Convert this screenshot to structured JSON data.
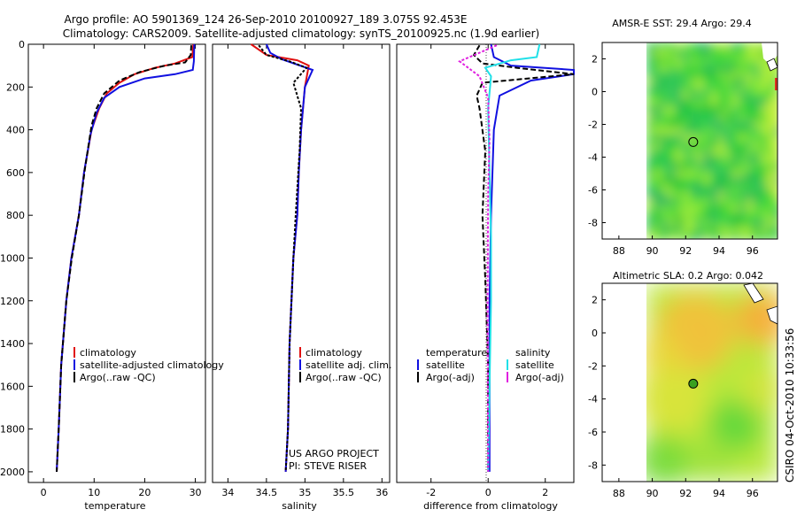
{
  "header": {
    "title_line1": "Argo profile: AO 5901369_124 26-Sep-2010 20100927_189 3.075S 92.453E",
    "title_line2": "Climatology: CARS2009. Satellite-adjusted climatology: synTS_20100925.nc (1.9d earlier)"
  },
  "credit": "CSIRO 04-Oct-2010 10:33:56",
  "colors": {
    "climatology": "#e01010",
    "satellite": "#1010e0",
    "argo": "#000000",
    "sat_salinity": "#20e0e8",
    "argo_salinity": "#e020e0"
  },
  "chart_data": [
    {
      "type": "line",
      "id": "temperature",
      "xlabel": "temperature",
      "ylabel": "",
      "xlim": [
        -3,
        32
      ],
      "ylim": [
        2050,
        0
      ],
      "xticks": [
        "0",
        "10",
        "20",
        "30"
      ],
      "xtick_values": [
        0,
        10,
        20,
        30
      ],
      "yticks": [
        "0",
        "200",
        "400",
        "600",
        "800",
        "1000",
        "1200",
        "1400",
        "1600",
        "1800",
        "2000"
      ],
      "ytick_values": [
        0,
        200,
        400,
        600,
        800,
        1000,
        1200,
        1400,
        1600,
        1800,
        2000
      ],
      "legend": [
        "climatology",
        "satellite-adjusted climatology",
        "Argo(..raw -QC)"
      ],
      "series": [
        {
          "name": "climatology",
          "x": [
            29.6,
            29.4,
            26,
            22,
            18,
            15,
            12.5,
            11,
            9.5,
            8,
            7,
            5.5,
            4.5,
            3.5,
            3,
            2.6
          ],
          "y": [
            0,
            60,
            90,
            110,
            140,
            180,
            230,
            300,
            400,
            600,
            800,
            1000,
            1200,
            1500,
            1800,
            2000
          ]
        },
        {
          "name": "satellite-adjusted climatology",
          "x": [
            29.8,
            29.7,
            29.5,
            26,
            20,
            15,
            12,
            10.5,
            9.3,
            8,
            7,
            5.5,
            4.5,
            3.5,
            3,
            2.6
          ],
          "y": [
            0,
            80,
            120,
            140,
            160,
            200,
            250,
            320,
            420,
            600,
            800,
            1000,
            1200,
            1500,
            1800,
            2000
          ]
        },
        {
          "name": "Argo(..raw -QC)",
          "x": [
            29.2,
            29.1,
            28,
            24,
            19,
            15,
            12,
            10.5,
            9.5,
            8.2,
            7,
            5.6,
            4.5,
            3.5,
            3,
            2.6
          ],
          "y": [
            5,
            50,
            85,
            100,
            130,
            170,
            230,
            300,
            380,
            580,
            800,
            1000,
            1200,
            1500,
            1800,
            2000
          ]
        }
      ]
    },
    {
      "type": "line",
      "id": "salinity",
      "xlabel": "salinity",
      "ylabel": "",
      "xlim": [
        33.8,
        36.1
      ],
      "ylim": [
        2050,
        0
      ],
      "xticks": [
        "34",
        "34.5",
        "35",
        "35.5",
        "36"
      ],
      "xtick_values": [
        34,
        34.5,
        35,
        35.5,
        36
      ],
      "legend": [
        "climatology",
        "satellite adj. clim.",
        "Argo(..raw -QC)"
      ],
      "annotations": [
        "US ARGO PROJECT",
        "PI: STEVE RISER"
      ],
      "series": [
        {
          "name": "climatology",
          "x": [
            34.3,
            34.5,
            34.9,
            35.05,
            35.0,
            34.95,
            34.92,
            34.9,
            34.85,
            34.8,
            34.78,
            34.75
          ],
          "y": [
            0,
            50,
            75,
            100,
            200,
            400,
            600,
            800,
            1000,
            1400,
            1800,
            2000
          ]
        },
        {
          "name": "satellite adj. clim.",
          "x": [
            34.5,
            34.55,
            34.7,
            35.1,
            35.0,
            34.95,
            34.92,
            34.9,
            34.85,
            34.8,
            34.78,
            34.75
          ],
          "y": [
            0,
            40,
            70,
            120,
            200,
            400,
            600,
            800,
            1000,
            1400,
            1800,
            2000
          ]
        },
        {
          "name": "Argo(..raw -QC)",
          "x": [
            34.4,
            34.5,
            34.8,
            35.02,
            34.85,
            34.95,
            34.93,
            34.88,
            34.85,
            34.8,
            34.78,
            34.75
          ],
          "y": [
            5,
            50,
            80,
            110,
            180,
            300,
            500,
            800,
            1000,
            1400,
            1800,
            2000
          ]
        }
      ]
    },
    {
      "type": "line",
      "id": "difference",
      "xlabel": "difference from climatology",
      "ylabel": "",
      "xlim": [
        -3.2,
        3
      ],
      "ylim": [
        2050,
        0
      ],
      "xticks": [
        "-2",
        "0",
        "2"
      ],
      "xtick_values": [
        -2,
        0,
        2
      ],
      "legend_left_header": "temperature",
      "legend_right_header": "salinity",
      "legend": [
        "satellite",
        "Argo(-adj)",
        "satellite",
        "Argo(-adj)"
      ],
      "series": [
        {
          "name": "satellite (temperature)",
          "x": [
            0.1,
            0.2,
            0.8,
            3,
            3,
            1.5,
            0.4,
            0.2,
            0.1,
            0.05,
            0.05,
            0.05
          ],
          "y": [
            0,
            60,
            100,
            120,
            140,
            170,
            240,
            400,
            800,
            1200,
            1600,
            2000
          ]
        },
        {
          "name": "Argo(-adj) (temperature)",
          "x": [
            -0.3,
            -0.5,
            -0.2,
            1,
            3,
            -0.2,
            -0.4,
            -0.3,
            -0.1,
            -0.2,
            -0.1,
            0,
            0
          ],
          "y": [
            5,
            50,
            90,
            110,
            140,
            180,
            240,
            300,
            500,
            800,
            1100,
            1500,
            2000
          ]
        },
        {
          "name": "satellite (salinity)",
          "x": [
            1.8,
            1.7,
            0.8,
            -0.1,
            0.1,
            0,
            0.05,
            0.1,
            0.1,
            0.05,
            0
          ],
          "y": [
            0,
            60,
            75,
            110,
            150,
            300,
            600,
            900,
            1200,
            1600,
            2000
          ]
        },
        {
          "name": "Argo(-adj) (salinity)",
          "x": [
            0.3,
            -1,
            -0.6,
            -0.3,
            0,
            0.05,
            0,
            -0.02,
            0
          ],
          "y": [
            5,
            80,
            120,
            150,
            250,
            450,
            700,
            1200,
            2000
          ]
        }
      ]
    },
    {
      "type": "heatmap",
      "id": "sst_map",
      "title": "AMSR-E SST: 29.4 Argo: 29.4",
      "xticks": [
        "88",
        "90",
        "92",
        "94",
        "96"
      ],
      "xtick_values": [
        88,
        90,
        92,
        94,
        96
      ],
      "yticks": [
        "2",
        "0",
        "-2",
        "-4",
        "-6",
        "-8"
      ],
      "ytick_values": [
        2,
        0,
        -2,
        -4,
        -6,
        -8
      ],
      "xlim": [
        87,
        97.5
      ],
      "ylim": [
        -9,
        3
      ],
      "marker": {
        "lon": 92.453,
        "lat": -3.075
      }
    },
    {
      "type": "heatmap",
      "id": "sla_map",
      "title": "Altimetric SLA: 0.2 Argo: 0.042",
      "xticks": [
        "88",
        "90",
        "92",
        "94",
        "96"
      ],
      "xtick_values": [
        88,
        90,
        92,
        94,
        96
      ],
      "yticks": [
        "2",
        "0",
        "-2",
        "-4",
        "-6",
        "-8"
      ],
      "ytick_values": [
        2,
        0,
        -2,
        -4,
        -6,
        -8
      ],
      "xlim": [
        87,
        97.5
      ],
      "ylim": [
        -9,
        3
      ],
      "marker": {
        "lon": 92.453,
        "lat": -3.075
      }
    }
  ]
}
